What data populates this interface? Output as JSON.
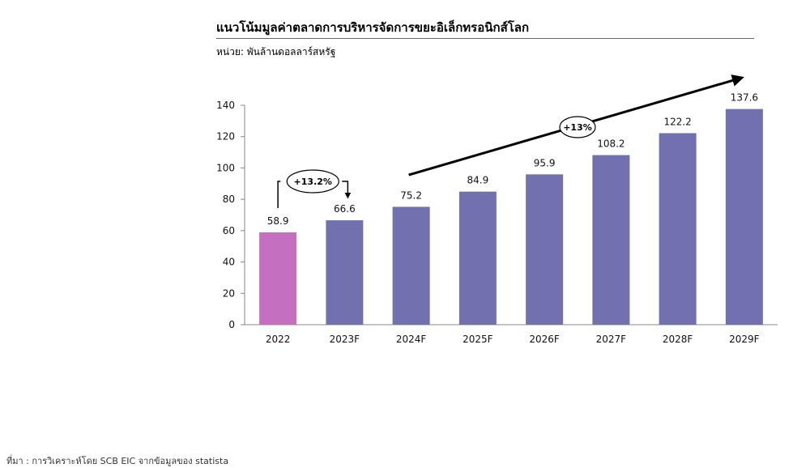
{
  "header": {
    "title": "แนวโน้มมูลค่าตลาดการบริหารจัดการขยะอิเล็กทรอนิกส์โลก",
    "unit": "หน่วย: พันล้านดอลลาร์สหรัฐ"
  },
  "footer": {
    "source": "ที่มา : การวิเคราะห์โดย SCB EIC จากข้อมูลของ statista"
  },
  "chart_data": {
    "type": "bar",
    "categories": [
      "2022",
      "2023F",
      "2024F",
      "2025F",
      "2026F",
      "2027F",
      "2028F",
      "2029F"
    ],
    "values": [
      58.9,
      66.6,
      75.2,
      84.9,
      95.9,
      108.2,
      122.2,
      137.6
    ],
    "value_labels": [
      "58.9",
      "66.6",
      "75.2",
      "84.9",
      "95.9",
      "108.2",
      "122.2",
      "137.6"
    ],
    "ylim": [
      0,
      140
    ],
    "yticks": [
      0,
      20,
      40,
      60,
      80,
      100,
      120,
      140
    ],
    "grid": false,
    "legend": "none",
    "colors": {
      "actual": "#c46fbf",
      "forecast": "#7370b0"
    },
    "annotations": [
      {
        "text": "+13.2%",
        "from": "2022",
        "to": "2023F"
      },
      {
        "text": "+13%",
        "from": "2024F",
        "to": "2029F"
      }
    ]
  }
}
